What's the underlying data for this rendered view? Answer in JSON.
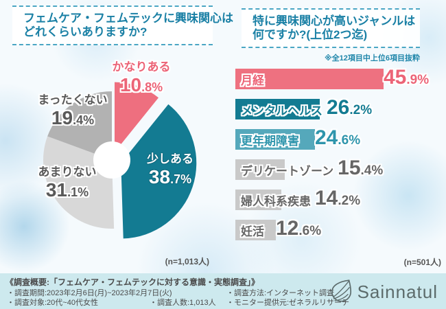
{
  "colors": {
    "pink": "#ee6f7f",
    "teal_dark": "#137b92",
    "teal_light": "#55a8bb",
    "gray_bar": "#c9c9c9",
    "title_teal": "#1a80a5",
    "footer_bg": "#cde9ee"
  },
  "chart_data": [
    {
      "type": "pie",
      "title": "フェムケア・フェムテックに興味関心はどれくらいありますか?",
      "title_lines": [
        "フェムケア・フェムテックに興味関心は",
        "どれくらいありますか?"
      ],
      "n": "(n=1,013人)",
      "donut": true,
      "start_angle_deg": 0,
      "clockwise": true,
      "slices": [
        {
          "label": "かなりある",
          "value": 10.8,
          "color": "#ee6f7f",
          "label_color": "#ec6477"
        },
        {
          "label": "少しある",
          "value": 38.7,
          "color": "#137b92",
          "label_color": "#ffffff"
        },
        {
          "label": "あまりない",
          "value": 31.1,
          "color": "#d8d8d8",
          "label_color": "#595959"
        },
        {
          "label": "まったくない",
          "value": 19.4,
          "color": "#b2b2b2",
          "label_color": "#595959"
        }
      ]
    },
    {
      "type": "bar",
      "title": "特に興味関心が高いジャンルは何ですか?(上位2つ迄)",
      "title_lines": [
        "特に興味関心が高いジャンルは",
        "何ですか?(上位2つ迄)"
      ],
      "note": "※全12項目中上位6項目抜粋",
      "n": "(n=501人)",
      "categories": [
        "月経",
        "メンタルヘルス",
        "更年期障害",
        "デリケートゾーン",
        "婦人科系疾患",
        "妊活"
      ],
      "values": [
        45.9,
        26.2,
        24.6,
        15.4,
        14.2,
        12.6
      ],
      "bar_colors": [
        "#ee7180",
        "#137b92",
        "#55a8bb",
        "#c9c9c9",
        "#c9c9c9",
        "#c9c9c9"
      ],
      "text_colors": [
        "#ec6477",
        "#137b92",
        "#2e95ac",
        "#666666",
        "#666666",
        "#666666"
      ],
      "xlim": [
        0,
        50
      ],
      "orientation": "horizontal"
    }
  ],
  "footer": {
    "heading": "《調査概要:「フェムケア・フェムテックに対する意識・実態調査」》",
    "survey_period": "・調査期間:2023年2月6日(月)~2023年2月7日(火)",
    "survey_target": "・調査対象:20代~40代女性",
    "survey_count": "・調査人数:1,013人",
    "survey_method": "・調査方法:インターネット調査",
    "monitor": "・モニター提供元:ゼネラルリサーチ"
  },
  "logo": {
    "text": "Sainnatul"
  }
}
